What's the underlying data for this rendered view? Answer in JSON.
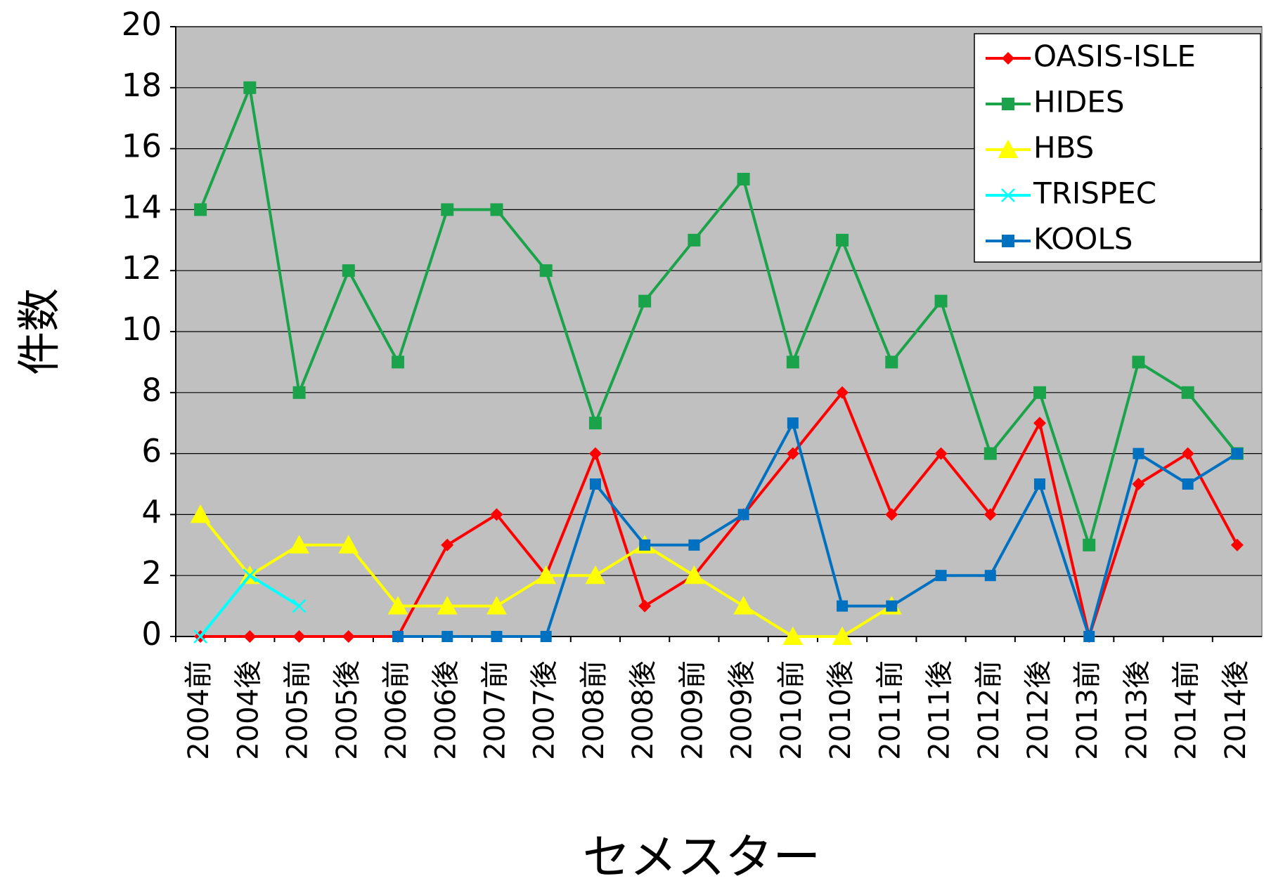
{
  "chart_data": {
    "type": "line",
    "xlabel": "セメスター",
    "ylabel": "件数",
    "categories": [
      "2004前",
      "2004後",
      "2005前",
      "2005後",
      "2006前",
      "2006後",
      "2007前",
      "2007後",
      "2008前",
      "2008後",
      "2009前",
      "2009後",
      "2010前",
      "2010後",
      "2011前",
      "2011後",
      "2012前",
      "2012後",
      "2013前",
      "2013後",
      "2014前",
      "2014後"
    ],
    "series": [
      {
        "name": "OASIS-ISLE",
        "color": "#ff0000",
        "marker": "diamond",
        "values": [
          0,
          0,
          0,
          0,
          0,
          3,
          4,
          2,
          6,
          1,
          2,
          4,
          6,
          8,
          4,
          6,
          4,
          7,
          0,
          5,
          6,
          3
        ]
      },
      {
        "name": "HIDES",
        "color": "#1aa34a",
        "marker": "square",
        "values": [
          14,
          18,
          8,
          12,
          9,
          14,
          14,
          12,
          7,
          11,
          13,
          15,
          9,
          13,
          9,
          11,
          6,
          8,
          3,
          9,
          8,
          6
        ]
      },
      {
        "name": "HBS",
        "color": "#ffff00",
        "marker": "triangle",
        "values": [
          4,
          2,
          3,
          3,
          1,
          1,
          1,
          2,
          2,
          3,
          2,
          1,
          0,
          0,
          1,
          null,
          null,
          null,
          null,
          null,
          null,
          null
        ]
      },
      {
        "name": "TRISPEC",
        "color": "#00ffff",
        "marker": "x",
        "values": [
          0,
          2,
          1,
          null,
          null,
          null,
          null,
          null,
          null,
          null,
          null,
          null,
          null,
          null,
          null,
          null,
          null,
          null,
          null,
          null,
          null,
          null
        ]
      },
      {
        "name": "KOOLS",
        "color": "#0070c0",
        "marker": "square",
        "values": [
          null,
          null,
          null,
          null,
          0,
          0,
          0,
          0,
          5,
          3,
          3,
          4,
          7,
          1,
          1,
          2,
          2,
          5,
          0,
          6,
          5,
          6
        ]
      }
    ],
    "ylim": [
      0,
      20
    ],
    "yticks": [
      0,
      2,
      4,
      6,
      8,
      10,
      12,
      14,
      16,
      18,
      20
    ],
    "grid": true,
    "plot_background": "#c0c0c0",
    "legend": "upper right"
  }
}
